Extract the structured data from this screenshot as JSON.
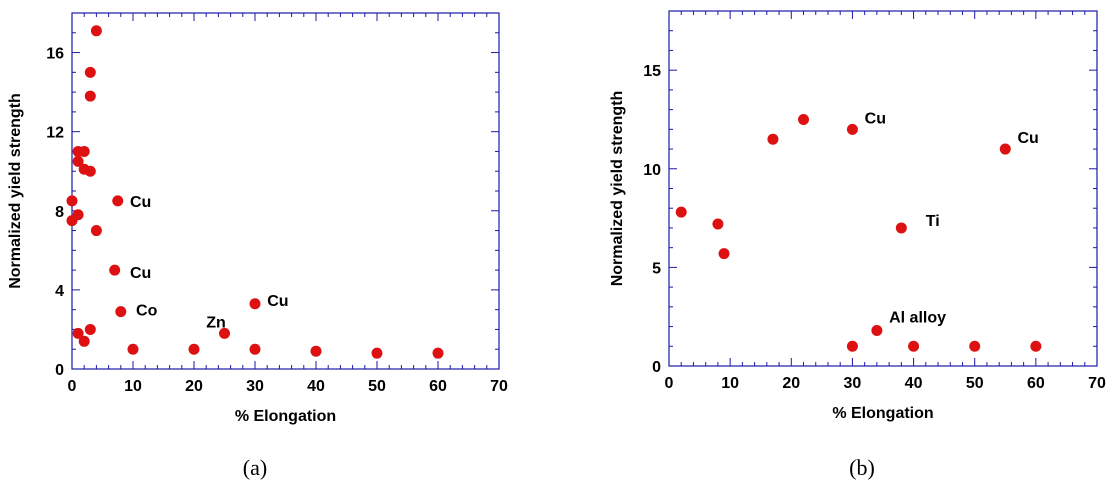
{
  "chart_data": [
    {
      "type": "scatter",
      "title": "",
      "caption": "(a)",
      "xlabel": "% Elongation",
      "ylabel": "Normalized yield strength",
      "xlim": [
        0,
        70
      ],
      "ylim": [
        0,
        18
      ],
      "xticks": [
        0,
        10,
        20,
        30,
        40,
        50,
        60,
        70
      ],
      "yticks": [
        0,
        4,
        8,
        12,
        16
      ],
      "marker_color": "#dd1111",
      "series": [
        {
          "points": [
            {
              "x": 4,
              "y": 17.1
            },
            {
              "x": 3,
              "y": 15.0
            },
            {
              "x": 3,
              "y": 13.8
            },
            {
              "x": 1,
              "y": 11.0
            },
            {
              "x": 2,
              "y": 11.0
            },
            {
              "x": 1,
              "y": 10.5
            },
            {
              "x": 2,
              "y": 10.1
            },
            {
              "x": 3,
              "y": 10.0
            },
            {
              "x": 0,
              "y": 8.5
            },
            {
              "x": 7.5,
              "y": 8.5
            },
            {
              "x": 1,
              "y": 7.8
            },
            {
              "x": 0,
              "y": 7.5
            },
            {
              "x": 4,
              "y": 7.0
            },
            {
              "x": 7,
              "y": 5.0
            },
            {
              "x": 8,
              "y": 2.9
            },
            {
              "x": 3,
              "y": 2.0
            },
            {
              "x": 1,
              "y": 1.8
            },
            {
              "x": 2,
              "y": 1.4
            },
            {
              "x": 10,
              "y": 1.0
            },
            {
              "x": 20,
              "y": 1.0
            },
            {
              "x": 25,
              "y": 1.8
            },
            {
              "x": 30,
              "y": 3.3
            },
            {
              "x": 30,
              "y": 1.0
            },
            {
              "x": 40,
              "y": 0.9
            },
            {
              "x": 50,
              "y": 0.8
            },
            {
              "x": 60,
              "y": 0.8
            }
          ]
        }
      ],
      "annotations": [
        {
          "text": "Cu",
          "x": 9.5,
          "y": 8.5
        },
        {
          "text": "Cu",
          "x": 9.5,
          "y": 4.9
        },
        {
          "text": "Co",
          "x": 10.5,
          "y": 3.0
        },
        {
          "text": "Zn",
          "x": 22,
          "y": 2.4
        },
        {
          "text": "Cu",
          "x": 32,
          "y": 3.5
        }
      ]
    },
    {
      "type": "scatter",
      "title": "",
      "caption": "(b)",
      "xlabel": "% Elongation",
      "ylabel": "Normalized yield strength",
      "xlim": [
        0,
        70
      ],
      "ylim": [
        0,
        18
      ],
      "xticks": [
        0,
        10,
        20,
        30,
        40,
        50,
        60,
        70
      ],
      "yticks": [
        0,
        5,
        10,
        15
      ],
      "marker_color": "#dd1111",
      "series": [
        {
          "points": [
            {
              "x": 2,
              "y": 7.8
            },
            {
              "x": 8,
              "y": 7.2
            },
            {
              "x": 9,
              "y": 5.7
            },
            {
              "x": 17,
              "y": 11.5
            },
            {
              "x": 22,
              "y": 12.5
            },
            {
              "x": 30,
              "y": 12.0
            },
            {
              "x": 55,
              "y": 11.0
            },
            {
              "x": 38,
              "y": 7.0
            },
            {
              "x": 34,
              "y": 1.8
            },
            {
              "x": 30,
              "y": 1.0
            },
            {
              "x": 40,
              "y": 1.0
            },
            {
              "x": 50,
              "y": 1.0
            },
            {
              "x": 60,
              "y": 1.0
            }
          ]
        }
      ],
      "annotations": [
        {
          "text": "Cu",
          "x": 32,
          "y": 12.6
        },
        {
          "text": "Cu",
          "x": 57,
          "y": 11.6
        },
        {
          "text": "Ti",
          "x": 42,
          "y": 7.4
        },
        {
          "text": "Al alloy",
          "x": 36,
          "y": 2.5
        }
      ]
    }
  ]
}
